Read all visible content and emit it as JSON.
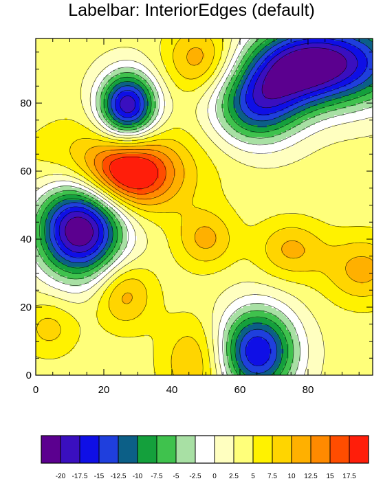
{
  "chart_data": {
    "type": "contour",
    "title": "Labelbar: InteriorEdges (default)",
    "xlabel": "",
    "ylabel": "",
    "xlim": [
      0,
      99
    ],
    "ylim": [
      0,
      99
    ],
    "x_ticks": [
      0,
      20,
      40,
      60,
      80
    ],
    "y_ticks": [
      0,
      20,
      40,
      60,
      80
    ],
    "contour_levels": [
      -20,
      -17.5,
      -15,
      -12.5,
      -10,
      -7.5,
      -5,
      -2.5,
      0,
      2.5,
      5,
      7.5,
      10,
      12.5,
      15,
      17.5
    ],
    "labelbar_labels": [
      "-20",
      "-17.5",
      "-15",
      "-12.5",
      "-10",
      "-7.5",
      "-5",
      "-2.5",
      "0",
      "2.5",
      "5",
      "7.5",
      "10",
      "12.5",
      "15",
      "17.5"
    ],
    "fill_colors": [
      "#5b008f",
      "#3a0fbf",
      "#0f0fe6",
      "#1f3fdd",
      "#0c5f87",
      "#14a03c",
      "#3fc24d",
      "#a8e0a4",
      "#ffffff",
      "#ffffc0",
      "#ffff7a",
      "#fff200",
      "#ffd500",
      "#ffb000",
      "#ff8a00",
      "#ff4d00",
      "#ff1e0a"
    ],
    "background_value": 3.5,
    "features": [
      {
        "x": 27,
        "y": 59,
        "amp": 14.5,
        "sx": 9,
        "sy": 7
      },
      {
        "x": 20,
        "y": 63,
        "amp": 5.5,
        "sx": 16,
        "sy": 9
      },
      {
        "x": 38,
        "y": 58,
        "amp": 2.5,
        "sx": 12,
        "sy": 10
      },
      {
        "x": 13,
        "y": 43,
        "amp": -27,
        "sx": 9,
        "sy": 10
      },
      {
        "x": 26,
        "y": 24,
        "amp": 8,
        "sx": 6,
        "sy": 7
      },
      {
        "x": 4,
        "y": 14,
        "amp": 5,
        "sx": 6,
        "sy": 6
      },
      {
        "x": 47,
        "y": 4,
        "amp": 7,
        "sx": 7,
        "sy": 9
      },
      {
        "x": 65,
        "y": 7,
        "amp": -21,
        "sx": 8,
        "sy": 9
      },
      {
        "x": 50,
        "y": 40,
        "amp": 7,
        "sx": 6,
        "sy": 6
      },
      {
        "x": 75,
        "y": 37,
        "amp": 7,
        "sx": 7,
        "sy": 6
      },
      {
        "x": 96,
        "y": 31,
        "amp": 7.5,
        "sx": 8,
        "sy": 7
      },
      {
        "x": 48,
        "y": 93,
        "amp": 8,
        "sx": 7,
        "sy": 7
      },
      {
        "x": 27,
        "y": 79,
        "amp": -24,
        "sx": 6,
        "sy": 7
      },
      {
        "x": 65,
        "y": 79,
        "amp": -16,
        "sx": 9,
        "sy": 8
      },
      {
        "x": 90,
        "y": 92,
        "amp": -20,
        "sx": 14,
        "sy": 9
      },
      {
        "x": 75,
        "y": 90,
        "amp": -14,
        "sx": 10,
        "sy": 8
      }
    ]
  }
}
